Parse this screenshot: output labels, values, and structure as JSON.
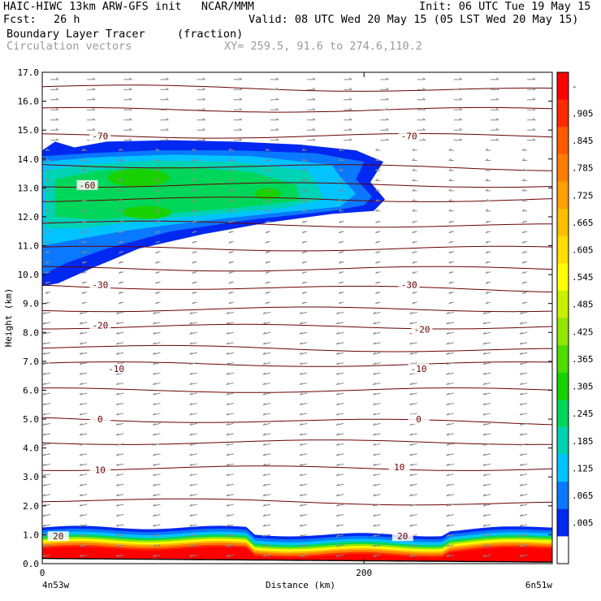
{
  "header": {
    "model_line": "HAIC-HIWC 13km ARW-GFS init   NCAR/MMM",
    "init_line": "Init: 06 UTC Tue 19 May 15",
    "fcst_label": "Fcst:",
    "fcst_value": "26 h",
    "valid_line": "Valid: 08 UTC Wed 20 May 15 (05 LST Wed 20 May 15)",
    "field_name": "Boundary Layer Tracer",
    "field_units": "(fraction)",
    "overlay_name": "Circulation vectors",
    "xy_line": "XY= 259.5, 91.6 to 274.6,110.2"
  },
  "chart_data": {
    "type": "heatmap",
    "ylabel": "Height (km)",
    "xlabel": "Distance (km)",
    "xlim": [
      0,
      317
    ],
    "ylim": [
      0,
      17
    ],
    "y_ticks": [
      "0.0",
      "1.0",
      "2.0",
      "3.0",
      "4.0",
      "5.0",
      "6.0",
      "7.0",
      "8.0",
      "9.0",
      "10.0",
      "11.0",
      "12.0",
      "13.0",
      "14.0",
      "15.0",
      "16.0",
      "17.0"
    ],
    "x_ticks": [
      {
        "value": 0,
        "label": "0"
      },
      {
        "value": 200,
        "label": "200"
      }
    ],
    "x_end_labels": {
      "left": "4n53w",
      "right": "6n51w"
    },
    "colorbar": {
      "labels": [
        "-",
        ".905",
        ".845",
        ".785",
        ".725",
        ".665",
        ".605",
        ".545",
        ".485",
        ".425",
        ".365",
        ".305",
        ".245",
        ".185",
        ".125",
        ".065",
        ".005"
      ],
      "colors": [
        "#ff0000",
        "#ff2a00",
        "#ff5a00",
        "#ff7d00",
        "#ff9f00",
        "#ffbf00",
        "#ffdd00",
        "#ffff00",
        "#c8f000",
        "#90e800",
        "#4fdc00",
        "#18d200",
        "#00d75a",
        "#00d2b4",
        "#00c3ff",
        "#0a78ff",
        "#0028f0",
        "#ffffff"
      ]
    },
    "contour_labels": [
      {
        "text": "-70",
        "x": 36,
        "y": 14.8
      },
      {
        "text": "-70",
        "x": 228,
        "y": 14.8
      },
      {
        "text": "-60",
        "x": 28,
        "y": 13.1
      },
      {
        "text": "-30",
        "x": 36,
        "y": 9.65
      },
      {
        "text": "-30",
        "x": 228,
        "y": 9.65
      },
      {
        "text": "-20",
        "x": 36,
        "y": 8.25
      },
      {
        "text": "-20",
        "x": 236,
        "y": 8.1
      },
      {
        "text": "-10",
        "x": 46,
        "y": 6.75
      },
      {
        "text": "-10",
        "x": 234,
        "y": 6.75
      },
      {
        "text": "0",
        "x": 36,
        "y": 5.0
      },
      {
        "text": "0",
        "x": 234,
        "y": 5.0
      },
      {
        "text": "10",
        "x": 36,
        "y": 3.25
      },
      {
        "text": "10",
        "x": 222,
        "y": 3.35
      },
      {
        "text": "20",
        "x": 10,
        "y": 0.95
      },
      {
        "text": "20",
        "x": 224,
        "y": 0.95
      }
    ],
    "contour_levels_km": [
      16.5,
      15.7,
      14.8,
      13.8,
      13.1,
      12.6,
      11.8,
      10.9,
      10.2,
      9.6,
      8.8,
      8.2,
      7.5,
      6.9,
      6.0,
      5.0,
      4.2,
      3.3,
      2.2
    ],
    "tracer_regions": [
      {
        "name": "upper-plume",
        "value": 0.305
      },
      {
        "name": "boundary-layer",
        "value": 0.905
      }
    ],
    "vectors": "gridded circulation vectors, mostly easterly flow"
  }
}
